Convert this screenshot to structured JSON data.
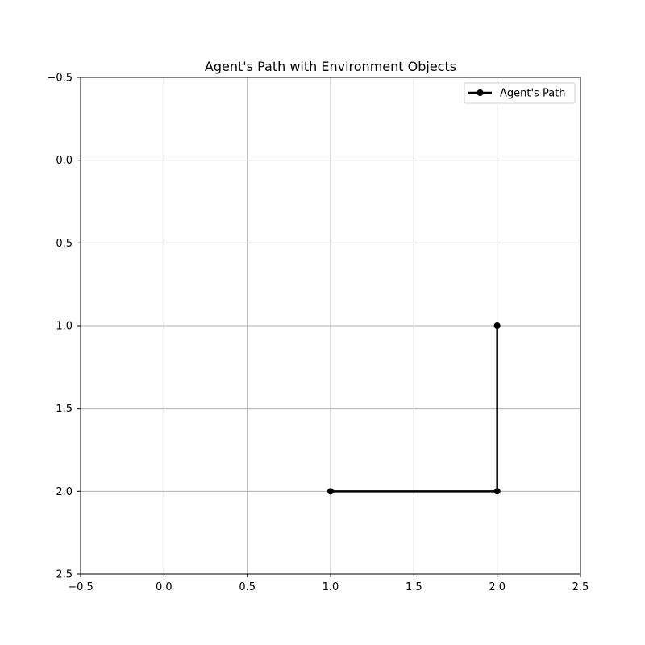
{
  "chart_data": {
    "type": "line",
    "title": "Agent's Path with Environment Objects",
    "xlabel": "",
    "ylabel": "",
    "xlim": [
      -0.5,
      2.5
    ],
    "ylim": [
      2.5,
      -0.5
    ],
    "y_inverted": true,
    "grid": true,
    "xticks": [
      -0.5,
      0.0,
      0.5,
      1.0,
      1.5,
      2.0,
      2.5
    ],
    "yticks": [
      -0.5,
      0.0,
      0.5,
      1.0,
      1.5,
      2.0,
      2.5
    ],
    "xtick_labels": [
      "−0.5",
      "0.0",
      "0.5",
      "1.0",
      "1.5",
      "2.0",
      "2.5"
    ],
    "ytick_labels": [
      "−0.5",
      "0.0",
      "0.5",
      "1.0",
      "1.5",
      "2.0",
      "2.5"
    ],
    "legend": {
      "placement": "top-right"
    },
    "series": [
      {
        "name": "Agent's Path",
        "color": "#000000",
        "marker": "circle",
        "x": [
          1.0,
          2.0,
          2.0
        ],
        "y": [
          2.0,
          2.0,
          1.0
        ]
      }
    ],
    "colors": {
      "grid": "#b0b0b0",
      "axes": "#000000",
      "background": "#ffffff"
    }
  }
}
